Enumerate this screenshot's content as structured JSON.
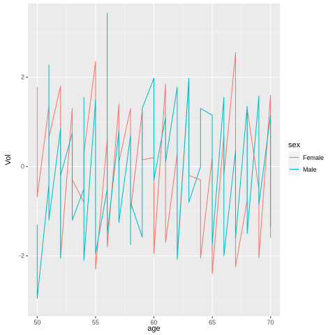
{
  "chart_data": {
    "type": "line",
    "title": "",
    "xlabel": "age",
    "ylabel": "Vol",
    "xlim": [
      49.2,
      70.8
    ],
    "ylim": [
      -3.35,
      3.65
    ],
    "xticks": [
      50,
      55,
      60,
      65,
      70
    ],
    "yticks": [
      -2,
      0,
      2
    ],
    "grid": true,
    "legend": {
      "title": "sex",
      "placement": "right"
    },
    "series": [
      {
        "name": "Female",
        "color": "#F8766D",
        "x": [
          50,
          50,
          50,
          51,
          51,
          51,
          52,
          52,
          52,
          53,
          53,
          54,
          54,
          55,
          55,
          55,
          56,
          56,
          57,
          57,
          58,
          58,
          58,
          59,
          59,
          60,
          60,
          61,
          61,
          61,
          62,
          62,
          63,
          63,
          64,
          64,
          65,
          65,
          66,
          66,
          67,
          67,
          68,
          68,
          69,
          69,
          70,
          70,
          70
        ],
        "y": [
          1.78,
          0.95,
          -0.68,
          1.35,
          0.0,
          0.65,
          1.8,
          0.5,
          -2.05,
          1.3,
          -0.3,
          -0.8,
          0.3,
          2.35,
          0.5,
          -2.3,
          0.6,
          -1.8,
          1.4,
          0.1,
          1.3,
          -0.5,
          -1.0,
          1.25,
          0.15,
          0.2,
          -1.95,
          1.85,
          -0.25,
          -1.7,
          0.3,
          -2.0,
          1.95,
          -0.2,
          -0.3,
          -2.05,
          0.2,
          -2.4,
          0.7,
          -0.2,
          2.55,
          -2.25,
          -0.75,
          1.3,
          -0.5,
          -2.05,
          1.6,
          0.0,
          -1.6
        ]
      },
      {
        "name": "Male",
        "color": "#00BFC4",
        "x": [
          50,
          50,
          51,
          51,
          51,
          52,
          52,
          52,
          53,
          53,
          54,
          54,
          54,
          55,
          55,
          56,
          56,
          56,
          57,
          57,
          58,
          58,
          58,
          59,
          59,
          60,
          60,
          61,
          61,
          62,
          62,
          63,
          63,
          64,
          64,
          65,
          65,
          66,
          66,
          67,
          67,
          68,
          68,
          69,
          69,
          70,
          70
        ],
        "y": [
          -1.3,
          -2.95,
          -0.4,
          2.27,
          -1.2,
          0.85,
          -2.05,
          -0.2,
          0.75,
          -1.2,
          -0.5,
          1.55,
          -2.1,
          1.5,
          -1.95,
          -0.5,
          3.43,
          -1.5,
          0.8,
          -1.25,
          0.7,
          -1.75,
          -0.8,
          -1.58,
          1.3,
          1.98,
          -0.3,
          1.1,
          0.1,
          1.78,
          -2.08,
          1.98,
          -0.8,
          0.0,
          1.3,
          1.15,
          -1.75,
          1.55,
          -2.0,
          0.35,
          -1.6,
          1.35,
          -1.5,
          1.58,
          -0.85,
          1.15,
          -1.35
        ]
      }
    ]
  }
}
